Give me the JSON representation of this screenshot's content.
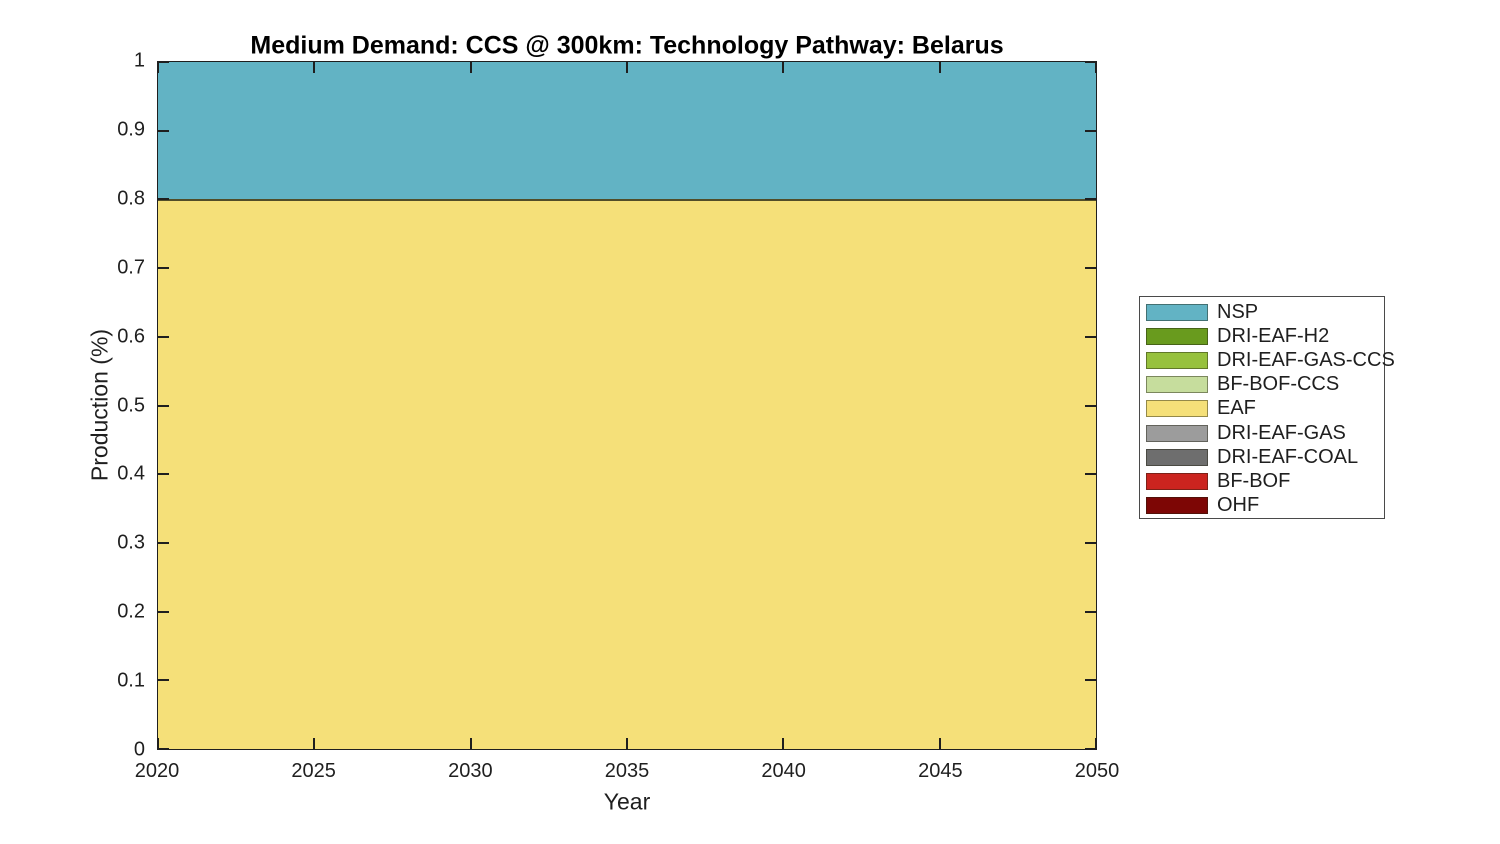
{
  "chart_data": {
    "type": "area",
    "stacked": true,
    "title": "Medium Demand: CCS @ 300km: Technology Pathway: Belarus",
    "xlabel": "Year",
    "ylabel": "Production (%)",
    "xlim": [
      2020,
      2050
    ],
    "ylim": [
      0,
      1
    ],
    "grid": false,
    "axis_color": "#1f1f1f",
    "edge_color": "rgba(40,40,20,0.8)",
    "x": [
      2020,
      2025,
      2030,
      2035,
      2040,
      2045,
      2050
    ],
    "xticks": {
      "values": [
        2020,
        2025,
        2030,
        2035,
        2040,
        2045,
        2050
      ],
      "labels": [
        "2020",
        "2025",
        "2030",
        "2035",
        "2040",
        "2045",
        "2050"
      ]
    },
    "yticks": {
      "values": [
        0,
        0.1,
        0.2,
        0.3,
        0.4,
        0.5,
        0.6,
        0.7,
        0.8,
        0.9,
        1
      ],
      "labels": [
        "0",
        "0.1",
        "0.2",
        "0.3",
        "0.4",
        "0.5",
        "0.6",
        "0.7",
        "0.8",
        "0.9",
        "1"
      ]
    },
    "series": [
      {
        "name": "NSP",
        "color": "#62B3C4",
        "values": [
          0.2,
          0.2,
          0.2,
          0.2,
          0.2,
          0.2,
          0.2
        ]
      },
      {
        "name": "DRI-EAF-H2",
        "color": "#699B1E",
        "values": [
          0,
          0,
          0,
          0,
          0,
          0,
          0
        ]
      },
      {
        "name": "DRI-EAF-GAS-CCS",
        "color": "#97C13D",
        "values": [
          0,
          0,
          0,
          0,
          0,
          0,
          0
        ]
      },
      {
        "name": "BF-BOF-CCS",
        "color": "#C6DD9D",
        "values": [
          0,
          0,
          0,
          0,
          0,
          0,
          0
        ]
      },
      {
        "name": "EAF",
        "color": "#F5E079",
        "values": [
          0.8,
          0.8,
          0.8,
          0.8,
          0.8,
          0.8,
          0.8
        ]
      },
      {
        "name": "DRI-EAF-GAS",
        "color": "#9C9C9C",
        "values": [
          0,
          0,
          0,
          0,
          0,
          0,
          0
        ]
      },
      {
        "name": "DRI-EAF-COAL",
        "color": "#6E6E6E",
        "values": [
          0,
          0,
          0,
          0,
          0,
          0,
          0
        ]
      },
      {
        "name": "BF-BOF",
        "color": "#CB241F",
        "values": [
          0,
          0,
          0,
          0,
          0,
          0,
          0
        ]
      },
      {
        "name": "OHF",
        "color": "#7D0605",
        "values": [
          0,
          0,
          0,
          0,
          0,
          0,
          0
        ]
      }
    ],
    "legend": {
      "position": "right-outside",
      "border_color": "#4a4a4a",
      "entries": [
        "NSP",
        "DRI-EAF-H2",
        "DRI-EAF-GAS-CCS",
        "BF-BOF-CCS",
        "EAF",
        "DRI-EAF-GAS",
        "DRI-EAF-COAL",
        "BF-BOF",
        "OHF"
      ]
    }
  }
}
